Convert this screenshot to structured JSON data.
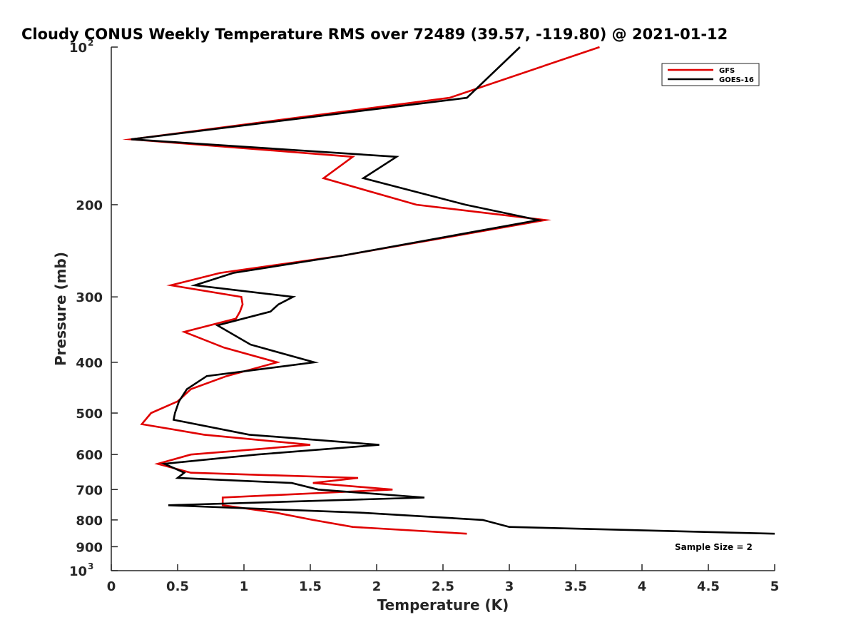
{
  "chart_data": {
    "type": "line",
    "title": "Cloudy CONUS Weekly Temperature RMS over 72489 (39.57, -119.80) @ 2021-01-12",
    "xlabel": "Temperature (K)",
    "ylabel": "Pressure (mb)",
    "xlim": [
      0,
      5
    ],
    "ylim": [
      100,
      1000
    ],
    "yscale": "log",
    "y_reversed": true,
    "grid": false,
    "legend_position": "top-right",
    "x_ticks": [
      "0",
      "0.5",
      "1",
      "1.5",
      "2",
      "2.5",
      "3",
      "3.5",
      "4",
      "4.5",
      "5"
    ],
    "y_ticks": [
      {
        "value": 100,
        "base": "10",
        "exp": "2"
      },
      {
        "value": 200,
        "label": "200"
      },
      {
        "value": 300,
        "label": "300"
      },
      {
        "value": 400,
        "label": "400"
      },
      {
        "value": 500,
        "label": "500"
      },
      {
        "value": 600,
        "label": "600"
      },
      {
        "value": 700,
        "label": "700"
      },
      {
        "value": 800,
        "label": "800"
      },
      {
        "value": 900,
        "label": "900"
      },
      {
        "value": 1000,
        "base": "10",
        "exp": "3"
      }
    ],
    "annotation": "Sample Size = 2",
    "series": [
      {
        "name": "GFS",
        "color": "#e00000",
        "x": [
          3.68,
          2.55,
          0.15,
          1.82,
          1.6,
          2.3,
          3.27,
          1.75,
          0.82,
          0.45,
          0.98,
          0.99,
          0.97,
          0.94,
          0.55,
          0.85,
          1.25,
          0.87,
          0.6,
          0.5,
          0.3,
          0.23,
          0.7,
          1.5,
          0.6,
          0.35,
          0.6,
          1.86,
          1.52,
          2.12,
          0.84,
          0.84,
          1.24,
          1.52,
          1.82,
          2.68
        ],
        "y": [
          100,
          125,
          150,
          162,
          178,
          200,
          214,
          250,
          270,
          285,
          300,
          310,
          320,
          330,
          350,
          375,
          400,
          425,
          450,
          475,
          500,
          525,
          550,
          575,
          600,
          625,
          650,
          665,
          680,
          700,
          725,
          750,
          775,
          800,
          825,
          850
        ]
      },
      {
        "name": "GOES-16",
        "color": "#000000",
        "x": [
          3.08,
          2.68,
          0.15,
          2.15,
          1.9,
          2.67,
          3.22,
          1.75,
          0.92,
          0.63,
          1.37,
          1.26,
          1.2,
          0.8,
          1.05,
          1.53,
          0.72,
          0.57,
          0.51,
          0.48,
          0.47,
          1.04,
          2.02,
          1.1,
          0.4,
          0.55,
          0.5,
          1.36,
          1.56,
          2.36,
          0.43,
          1.88,
          2.8,
          3.0,
          5.0
        ],
        "y": [
          100,
          125,
          150,
          162,
          178,
          200,
          214,
          250,
          270,
          285,
          300,
          310,
          320,
          340,
          370,
          400,
          425,
          450,
          475,
          500,
          515,
          550,
          575,
          600,
          625,
          650,
          665,
          680,
          700,
          725,
          750,
          775,
          800,
          825,
          850
        ]
      }
    ]
  }
}
